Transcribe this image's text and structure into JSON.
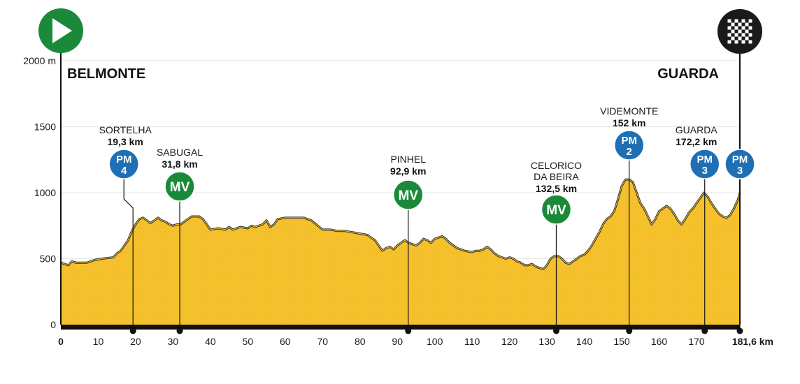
{
  "chart_data": {
    "type": "area",
    "title": "",
    "xlabel": "",
    "ylabel": "",
    "x_unit_label": "181,6 km",
    "xlim": [
      0,
      181.6
    ],
    "ylim": [
      0,
      2000
    ],
    "y_ticks": [
      {
        "value": 0,
        "label": "0"
      },
      {
        "value": 500,
        "label": "500"
      },
      {
        "value": 1000,
        "label": "1000"
      },
      {
        "value": 1500,
        "label": "1500"
      },
      {
        "value": 2000,
        "label": "2000 m"
      }
    ],
    "x_ticks": [
      {
        "value": 0,
        "label": "0"
      },
      {
        "value": 10,
        "label": "10"
      },
      {
        "value": 20,
        "label": "20"
      },
      {
        "value": 30,
        "label": "30"
      },
      {
        "value": 40,
        "label": "40"
      },
      {
        "value": 50,
        "label": "50"
      },
      {
        "value": 60,
        "label": "60"
      },
      {
        "value": 70,
        "label": "70"
      },
      {
        "value": 80,
        "label": "80"
      },
      {
        "value": 90,
        "label": "90"
      },
      {
        "value": 100,
        "label": "100"
      },
      {
        "value": 110,
        "label": "110"
      },
      {
        "value": 120,
        "label": "120"
      },
      {
        "value": 130,
        "label": "130"
      },
      {
        "value": 140,
        "label": "140"
      },
      {
        "value": 150,
        "label": "150"
      },
      {
        "value": 160,
        "label": "160"
      },
      {
        "value": 170,
        "label": "170"
      },
      {
        "value": 181.6,
        "label": "181,6 km"
      }
    ],
    "start_city": "BELMONTE",
    "finish_city": "GUARDA",
    "colors": {
      "fill": "#f5c22d",
      "outline": "#333333",
      "start_badge": "#1a8a3a",
      "finish_badge": "#1a1a1a",
      "pm_badge": "#1f6fb5",
      "mv_badge": "#1a8a3a",
      "grid": "#e6e6e6"
    },
    "series": [
      {
        "x": [
          0,
          2,
          3,
          4,
          7,
          9,
          11,
          14,
          15,
          16,
          17,
          18,
          19,
          20,
          21,
          22,
          23,
          24,
          25,
          26,
          27,
          28,
          29,
          30,
          31,
          32,
          33,
          34,
          35,
          37,
          38,
          40,
          42,
          44,
          45,
          46,
          48,
          50,
          51,
          52,
          54,
          55,
          56,
          57,
          58,
          60,
          62,
          65,
          67,
          70,
          72,
          74,
          76,
          78,
          80,
          82,
          83,
          84,
          85,
          86,
          87,
          88,
          89,
          90,
          91,
          92,
          93,
          94,
          95,
          96,
          97,
          98,
          99,
          100,
          101,
          102,
          103,
          104,
          105,
          106,
          108,
          110,
          111,
          112,
          113,
          114,
          115,
          116,
          117,
          118,
          119,
          120,
          121,
          122,
          123,
          124,
          125,
          126,
          127,
          128,
          129,
          130,
          131,
          132,
          133,
          134,
          135,
          136,
          137,
          138,
          139,
          140,
          141,
          142,
          143,
          144,
          145,
          146,
          147,
          148,
          149,
          150,
          151,
          152,
          153,
          154,
          155,
          156,
          157,
          158,
          159,
          160,
          161,
          162,
          163,
          164,
          165,
          166,
          167,
          168,
          169,
          170,
          171,
          172,
          173,
          174,
          175,
          176,
          177,
          178,
          179,
          180,
          181,
          181.6
        ],
        "values": [
          470,
          450,
          480,
          470,
          470,
          490,
          500,
          510,
          540,
          560,
          600,
          640,
          710,
          760,
          800,
          810,
          790,
          770,
          790,
          810,
          790,
          780,
          760,
          750,
          760,
          760,
          780,
          800,
          820,
          820,
          800,
          720,
          730,
          720,
          740,
          720,
          740,
          730,
          750,
          740,
          760,
          790,
          740,
          760,
          800,
          810,
          810,
          810,
          790,
          720,
          720,
          710,
          710,
          700,
          690,
          680,
          660,
          640,
          600,
          560,
          580,
          590,
          570,
          600,
          620,
          640,
          620,
          610,
          600,
          620,
          650,
          640,
          620,
          650,
          660,
          670,
          650,
          620,
          600,
          580,
          560,
          550,
          560,
          560,
          570,
          590,
          570,
          540,
          520,
          510,
          500,
          510,
          500,
          480,
          470,
          450,
          450,
          460,
          440,
          430,
          420,
          450,
          500,
          520,
          520,
          500,
          470,
          460,
          480,
          500,
          520,
          530,
          560,
          600,
          650,
          700,
          760,
          800,
          820,
          860,
          950,
          1050,
          1100,
          1100,
          1080,
          1000,
          920,
          880,
          820,
          760,
          800,
          860,
          880,
          900,
          880,
          840,
          790,
          760,
          800,
          850,
          880,
          920,
          960,
          1000,
          970,
          920,
          880,
          840,
          820,
          810,
          830,
          880,
          940,
          1000
        ]
      }
    ],
    "waypoints": [
      {
        "name": "SORTELHA",
        "km_label": "19,3 km",
        "km": 19.3,
        "badge": "PM",
        "badge_sub": "4",
        "name_lines": [
          "SORTELHA"
        ]
      },
      {
        "name": "SABUGAL",
        "km_label": "31,8 km",
        "km": 31.8,
        "badge": "MV",
        "badge_sub": "",
        "name_lines": [
          "SABUGAL"
        ]
      },
      {
        "name": "PINHEL",
        "km_label": "92,9 km",
        "km": 92.9,
        "badge": "MV",
        "badge_sub": "",
        "name_lines": [
          "PINHEL"
        ]
      },
      {
        "name": "CELORICO DA BEIRA",
        "km_label": "132,5 km",
        "km": 132.5,
        "badge": "MV",
        "badge_sub": "",
        "name_lines": [
          "CELORICO",
          "DA BEIRA"
        ]
      },
      {
        "name": "VIDEMONTE",
        "km_label": "152 km",
        "km": 152,
        "badge": "PM",
        "badge_sub": "2",
        "name_lines": [
          "VIDEMONTE"
        ]
      },
      {
        "name": "GUARDA",
        "km_label": "172,2 km",
        "km": 172.2,
        "badge": "PM",
        "badge_sub": "3",
        "name_lines": [
          "GUARDA"
        ]
      },
      {
        "name": "",
        "km_label": "",
        "km": 181.6,
        "badge": "PM",
        "badge_sub": "3",
        "name_lines": []
      }
    ]
  }
}
